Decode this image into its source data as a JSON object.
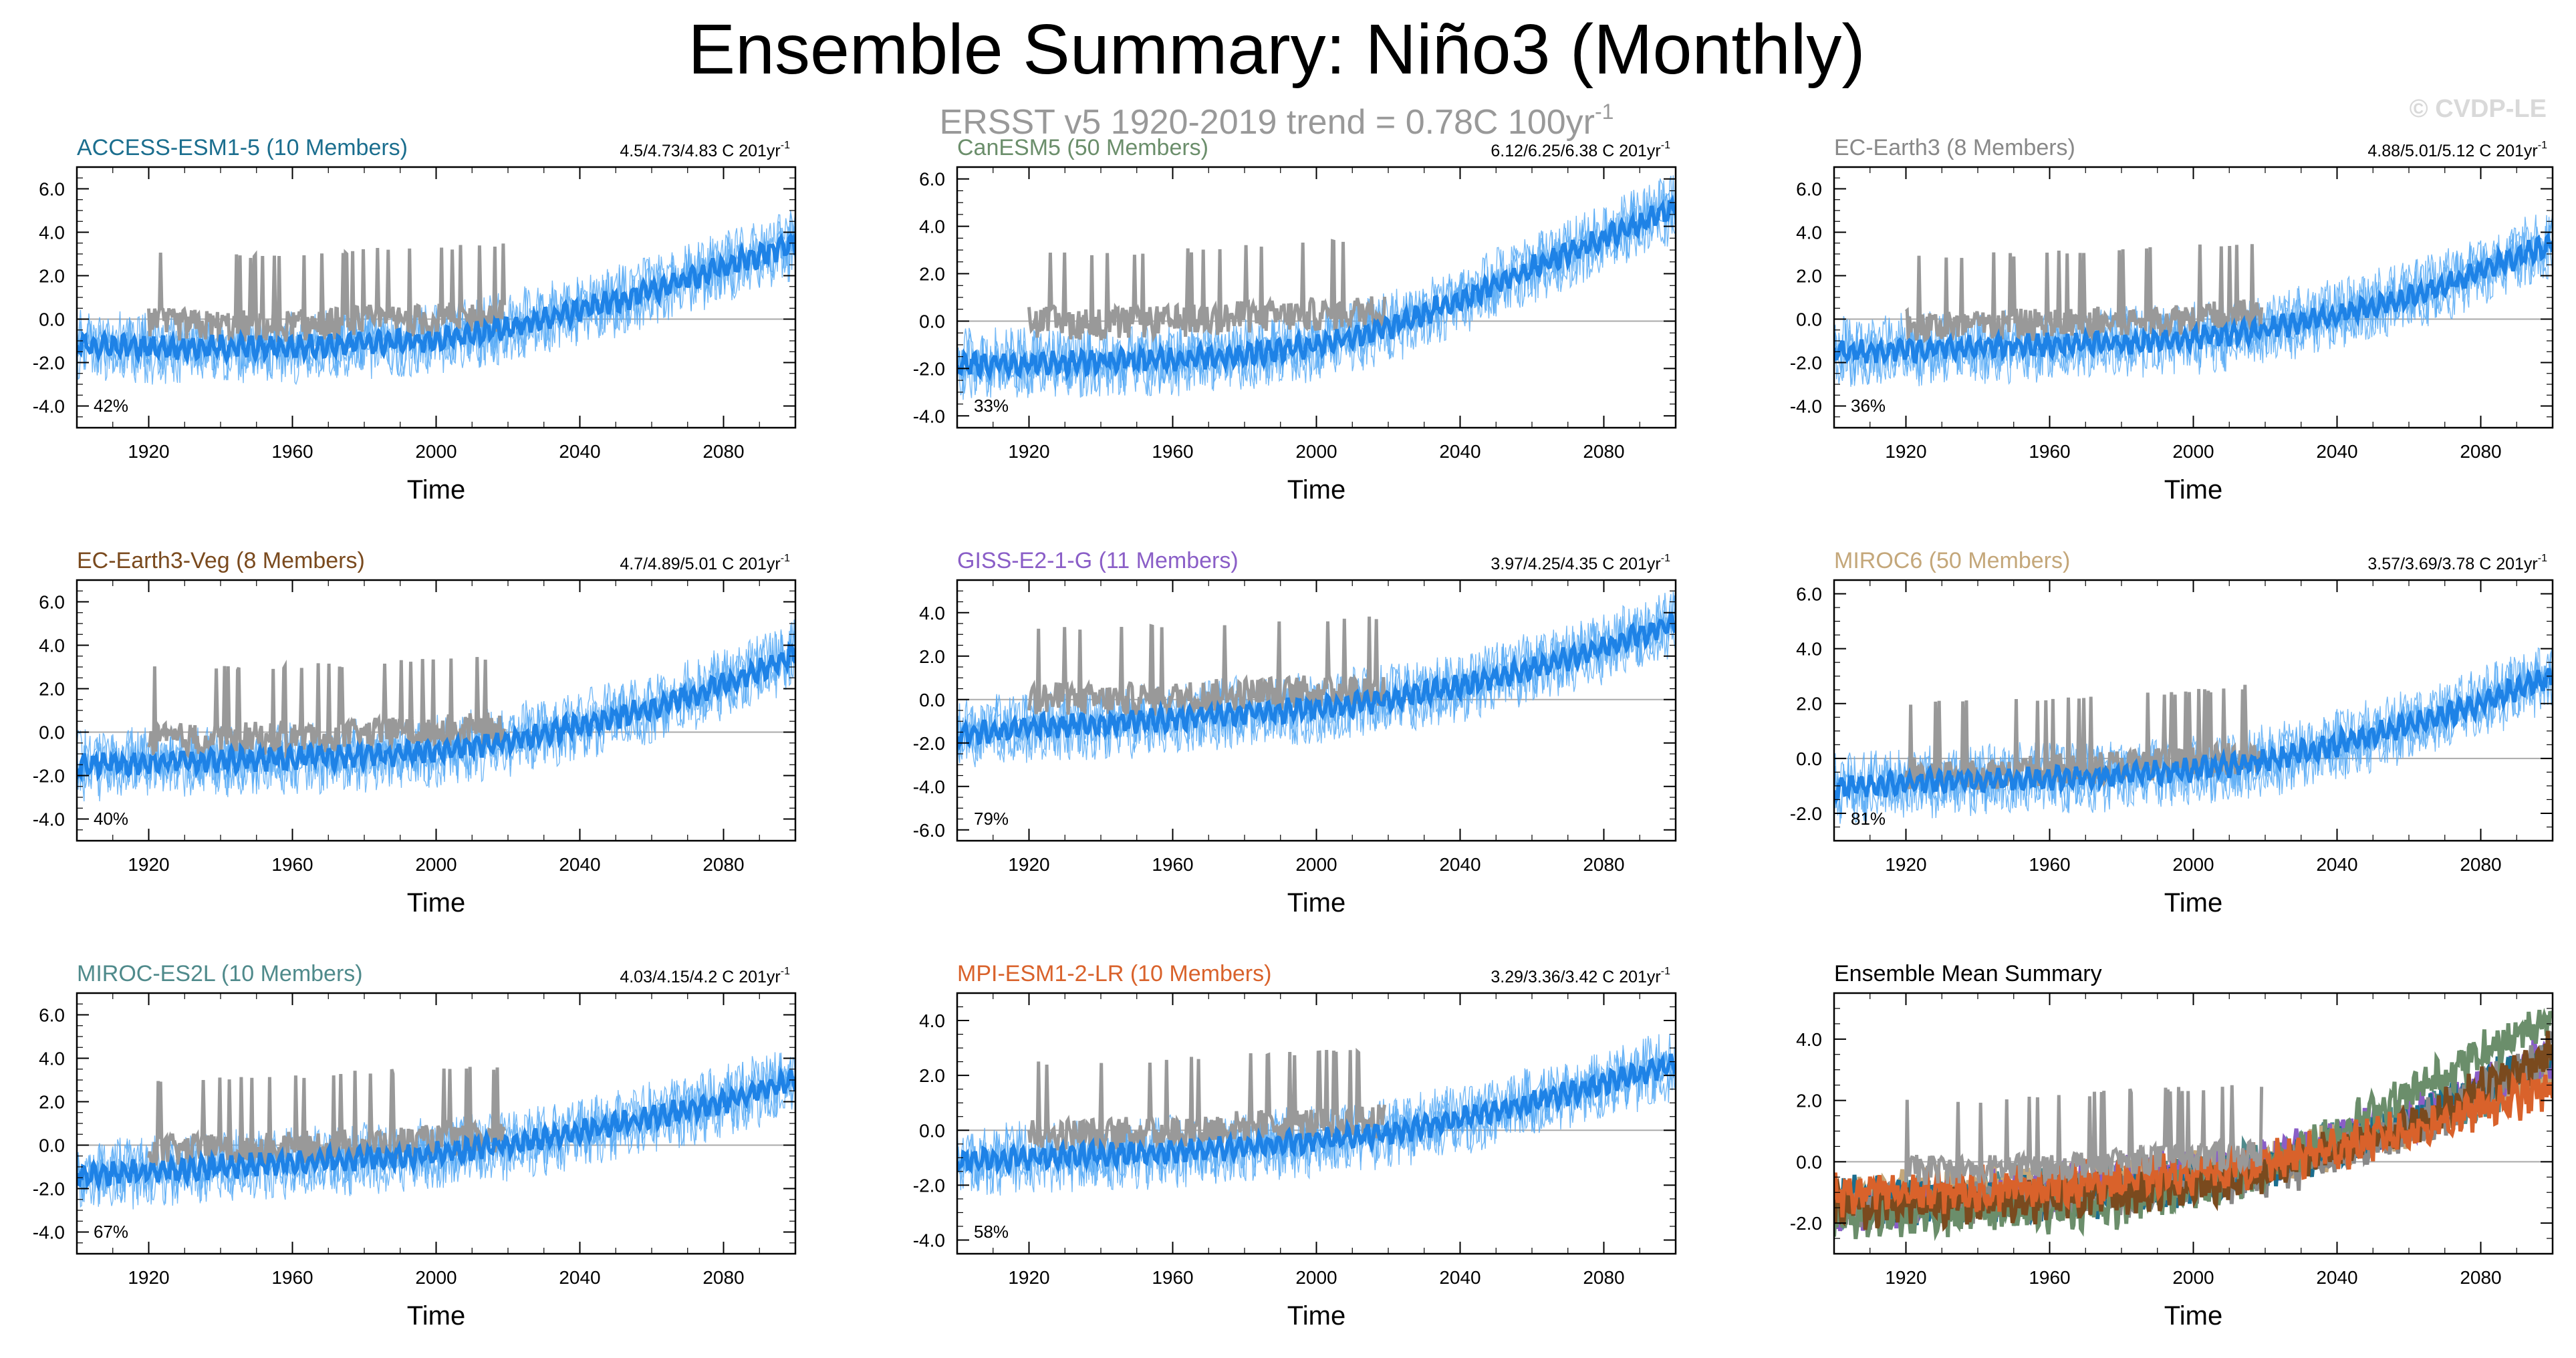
{
  "page": {
    "title": "Ensemble Summary: Niño3 (Monthly)",
    "subtitle_prefix": "ERSST v5 1920-2019 trend = 0.78C 100yr",
    "subtitle_exponent": "-1",
    "watermark": "© CVDP-LE"
  },
  "colors": {
    "observed": "#999999",
    "member_spread": "#54a9f5",
    "ensemble_mean": "#1e82e6",
    "zero_line": "#aaaaaa",
    "axis": "#000000"
  },
  "chart_data": [
    {
      "type": "line",
      "title": "ACCESS-ESM1-5 (10 Members)",
      "title_color": "#1b6e8e",
      "trend_text": "4.5/4.73/4.83 C 201yr",
      "trend_exponent": "-1",
      "percent_label": "42%",
      "xlabel": "Time",
      "xlim": [
        1900,
        2100
      ],
      "xticks": [
        1920,
        1960,
        2000,
        2040,
        2080
      ],
      "ylim": [
        -5,
        7
      ],
      "yticks": [
        -4.0,
        -2.0,
        0.0,
        2.0,
        4.0,
        6.0
      ],
      "grid": false,
      "series": [
        {
          "role": "ensemble-mean",
          "x": [
            1900,
            1920,
            1940,
            1960,
            1980,
            2000,
            2020,
            2040,
            2060,
            2080,
            2100
          ],
          "values": [
            -1.2,
            -1.3,
            -1.3,
            -1.3,
            -1.1,
            -1.0,
            -0.4,
            0.4,
            1.3,
            2.4,
            3.5
          ]
        },
        {
          "role": "observed",
          "x": [
            1920,
            1940,
            1960,
            1980,
            2000,
            2019
          ],
          "values": [
            -0.3,
            -0.4,
            -0.4,
            -0.2,
            -0.1,
            0.1
          ]
        }
      ]
    },
    {
      "type": "line",
      "title": "CanESM5 (50 Members)",
      "title_color": "#6b8e6b",
      "trend_text": "6.12/6.25/6.38 C 201yr",
      "trend_exponent": "-1",
      "percent_label": "33%",
      "xlabel": "Time",
      "xlim": [
        1900,
        2100
      ],
      "xticks": [
        1920,
        1960,
        2000,
        2040,
        2080
      ],
      "ylim": [
        -4.5,
        6.5
      ],
      "yticks": [
        -4.0,
        -2.0,
        0.0,
        2.0,
        4.0,
        6.0
      ],
      "grid": false,
      "series": [
        {
          "role": "ensemble-mean",
          "x": [
            1900,
            1920,
            1940,
            1960,
            1980,
            2000,
            2020,
            2040,
            2060,
            2080,
            2100
          ],
          "values": [
            -1.8,
            -1.8,
            -1.7,
            -1.6,
            -1.4,
            -1.0,
            -0.3,
            0.9,
            2.2,
            3.5,
            4.8
          ]
        },
        {
          "role": "observed",
          "x": [
            1920,
            1940,
            1960,
            1980,
            2000,
            2019
          ],
          "values": [
            -0.1,
            -0.2,
            -0.1,
            0.1,
            0.2,
            0.4
          ]
        }
      ]
    },
    {
      "type": "line",
      "title": "EC-Earth3 (8 Members)",
      "title_color": "#888888",
      "trend_text": "4.88/5.01/5.12 C 201yr",
      "trend_exponent": "-1",
      "percent_label": "36%",
      "xlabel": "Time",
      "xlim": [
        1900,
        2100
      ],
      "xticks": [
        1920,
        1960,
        2000,
        2040,
        2080
      ],
      "ylim": [
        -5,
        7
      ],
      "yticks": [
        -4.0,
        -2.0,
        0.0,
        2.0,
        4.0,
        6.0
      ],
      "grid": false,
      "series": [
        {
          "role": "ensemble-mean",
          "x": [
            1900,
            1920,
            1940,
            1960,
            1980,
            2000,
            2020,
            2040,
            2060,
            2080,
            2100
          ],
          "values": [
            -1.5,
            -1.4,
            -1.3,
            -1.2,
            -1.1,
            -0.9,
            -0.5,
            0.2,
            1.0,
            2.2,
            3.5
          ]
        },
        {
          "role": "observed",
          "x": [
            1920,
            1940,
            1960,
            1980,
            2000,
            2019
          ],
          "values": [
            -0.4,
            -0.4,
            -0.3,
            -0.2,
            0.0,
            0.1
          ]
        }
      ]
    },
    {
      "type": "line",
      "title": "EC-Earth3-Veg (8 Members)",
      "title_color": "#7a4a1e",
      "trend_text": "4.7/4.89/5.01 C 201yr",
      "trend_exponent": "-1",
      "percent_label": "40%",
      "xlabel": "Time",
      "xlim": [
        1900,
        2100
      ],
      "xticks": [
        1920,
        1960,
        2000,
        2040,
        2080
      ],
      "ylim": [
        -5,
        7
      ],
      "yticks": [
        -4.0,
        -2.0,
        0.0,
        2.0,
        4.0,
        6.0
      ],
      "grid": false,
      "series": [
        {
          "role": "ensemble-mean",
          "x": [
            1900,
            1920,
            1940,
            1960,
            1980,
            2000,
            2020,
            2040,
            2060,
            2080,
            2100
          ],
          "values": [
            -1.5,
            -1.4,
            -1.3,
            -1.2,
            -1.1,
            -0.9,
            -0.4,
            0.3,
            1.1,
            2.2,
            3.6
          ]
        },
        {
          "role": "observed",
          "x": [
            1920,
            1940,
            1960,
            1980,
            2000,
            2019
          ],
          "values": [
            -0.4,
            -0.4,
            -0.3,
            -0.2,
            0.0,
            0.1
          ]
        }
      ]
    },
    {
      "type": "line",
      "title": "GISS-E2-1-G (11 Members)",
      "title_color": "#8a5ec7",
      "trend_text": "3.97/4.25/4.35 C 201yr",
      "trend_exponent": "-1",
      "percent_label": "79%",
      "xlabel": "Time",
      "xlim": [
        1900,
        2100
      ],
      "xticks": [
        1920,
        1960,
        2000,
        2040,
        2080
      ],
      "ylim": [
        -6.5,
        5.5
      ],
      "yticks": [
        -6.0,
        -4.0,
        -2.0,
        0.0,
        2.0,
        4.0
      ],
      "grid": false,
      "series": [
        {
          "role": "ensemble-mean",
          "x": [
            1900,
            1920,
            1940,
            1960,
            1980,
            2000,
            2020,
            2040,
            2060,
            2080,
            2100
          ],
          "values": [
            -1.6,
            -1.3,
            -1.1,
            -0.9,
            -0.6,
            -0.4,
            0.0,
            0.6,
            1.4,
            2.4,
            3.5
          ]
        },
        {
          "role": "observed",
          "x": [
            1920,
            1940,
            1960,
            1980,
            2000,
            2019
          ],
          "values": [
            0.0,
            -0.1,
            0.0,
            0.2,
            0.3,
            0.4
          ]
        }
      ]
    },
    {
      "type": "line",
      "title": "MIROC6 (50 Members)",
      "title_color": "#c4a77a",
      "trend_text": "3.57/3.69/3.78 C 201yr",
      "trend_exponent": "-1",
      "percent_label": "81%",
      "xlabel": "Time",
      "xlim": [
        1900,
        2100
      ],
      "xticks": [
        1920,
        1960,
        2000,
        2040,
        2080
      ],
      "ylim": [
        -3,
        6.5
      ],
      "yticks": [
        -2.0,
        0.0,
        2.0,
        4.0,
        6.0
      ],
      "grid": false,
      "series": [
        {
          "role": "ensemble-mean",
          "x": [
            1900,
            1920,
            1940,
            1960,
            1980,
            2000,
            2020,
            2040,
            2060,
            2080,
            2100
          ],
          "values": [
            -1.1,
            -0.9,
            -0.8,
            -0.7,
            -0.6,
            -0.4,
            -0.1,
            0.5,
            1.2,
            2.0,
            3.0
          ]
        },
        {
          "role": "observed",
          "x": [
            1920,
            1940,
            1960,
            1980,
            2000,
            2019
          ],
          "values": [
            -0.6,
            -0.6,
            -0.5,
            -0.3,
            -0.2,
            0.0
          ]
        }
      ]
    },
    {
      "type": "line",
      "title": "MIROC-ES2L (10 Members)",
      "title_color": "#4f8a8b",
      "trend_text": "4.03/4.15/4.2 C 201yr",
      "trend_exponent": "-1",
      "percent_label": "67%",
      "xlabel": "Time",
      "xlim": [
        1900,
        2100
      ],
      "xticks": [
        1920,
        1960,
        2000,
        2040,
        2080
      ],
      "ylim": [
        -5,
        7
      ],
      "yticks": [
        -4.0,
        -2.0,
        0.0,
        2.0,
        4.0,
        6.0
      ],
      "grid": false,
      "series": [
        {
          "role": "ensemble-mean",
          "x": [
            1900,
            1920,
            1940,
            1960,
            1980,
            2000,
            2020,
            2040,
            2060,
            2080,
            2100
          ],
          "values": [
            -1.4,
            -1.2,
            -1.0,
            -0.8,
            -0.6,
            -0.4,
            0.0,
            0.6,
            1.3,
            2.0,
            3.0
          ]
        },
        {
          "role": "observed",
          "x": [
            1920,
            1940,
            1960,
            1980,
            2000,
            2019
          ],
          "values": [
            -0.3,
            -0.3,
            -0.2,
            0.0,
            0.1,
            0.2
          ]
        }
      ]
    },
    {
      "type": "line",
      "title": "MPI-ESM1-2-LR (10 Members)",
      "title_color": "#d9622b",
      "trend_text": "3.29/3.36/3.42 C 201yr",
      "trend_exponent": "-1",
      "percent_label": "58%",
      "xlabel": "Time",
      "xlim": [
        1900,
        2100
      ],
      "xticks": [
        1920,
        1960,
        2000,
        2040,
        2080
      ],
      "ylim": [
        -4.5,
        5
      ],
      "yticks": [
        -4.0,
        -2.0,
        0.0,
        2.0,
        4.0
      ],
      "grid": false,
      "series": [
        {
          "role": "ensemble-mean",
          "x": [
            1900,
            1920,
            1940,
            1960,
            1980,
            2000,
            2020,
            2040,
            2060,
            2080,
            2100
          ],
          "values": [
            -1.1,
            -1.0,
            -0.9,
            -0.8,
            -0.6,
            -0.4,
            -0.1,
            0.4,
            1.0,
            1.7,
            2.4
          ]
        },
        {
          "role": "observed",
          "x": [
            1920,
            1940,
            1960,
            1980,
            2000,
            2019
          ],
          "values": [
            -0.2,
            -0.2,
            -0.1,
            0.1,
            0.2,
            0.3
          ]
        }
      ]
    },
    {
      "type": "line",
      "title": "Ensemble Mean Summary",
      "title_color": "#000000",
      "xlabel": "Time",
      "xlim": [
        1900,
        2100
      ],
      "xticks": [
        1920,
        1960,
        2000,
        2040,
        2080
      ],
      "ylim": [
        -3,
        5.5
      ],
      "yticks": [
        -2.0,
        0.0,
        2.0,
        4.0
      ],
      "grid": false,
      "series": [
        {
          "role": "observed",
          "color": "#999999",
          "x": [
            1920,
            1940,
            1960,
            1980,
            2000,
            2019
          ],
          "values": [
            -0.3,
            -0.3,
            -0.2,
            0.0,
            0.1,
            0.2
          ]
        },
        {
          "role": "model-mean",
          "color": "#4f8a8b",
          "x": [
            1900,
            1940,
            1980,
            2020,
            2060,
            2100
          ],
          "values": [
            -1.4,
            -1.0,
            -0.6,
            0.0,
            1.3,
            3.0
          ]
        },
        {
          "role": "model-mean",
          "color": "#c4a77a",
          "x": [
            1900,
            1940,
            1980,
            2020,
            2060,
            2100
          ],
          "values": [
            -1.1,
            -0.8,
            -0.6,
            -0.1,
            1.2,
            3.0
          ]
        },
        {
          "role": "model-mean",
          "color": "#8a5ec7",
          "x": [
            1900,
            1940,
            1980,
            2020,
            2060,
            2100
          ],
          "values": [
            -1.6,
            -1.1,
            -0.6,
            0.0,
            1.4,
            3.5
          ]
        },
        {
          "role": "model-mean",
          "color": "#1b6e8e",
          "x": [
            1900,
            1940,
            1980,
            2020,
            2060,
            2100
          ],
          "values": [
            -1.2,
            -1.3,
            -1.1,
            -0.4,
            1.3,
            3.5
          ]
        },
        {
          "role": "model-mean",
          "color": "#888888",
          "x": [
            1900,
            1940,
            1980,
            2020,
            2060,
            2100
          ],
          "values": [
            -1.5,
            -1.3,
            -1.1,
            -0.5,
            1.0,
            3.5
          ]
        },
        {
          "role": "model-mean",
          "color": "#6b8e6b",
          "x": [
            1900,
            1940,
            1980,
            2020,
            2060,
            2100
          ],
          "values": [
            -1.8,
            -1.7,
            -1.4,
            -0.3,
            2.2,
            4.8
          ]
        },
        {
          "role": "model-mean",
          "color": "#7a4a1e",
          "x": [
            1900,
            1940,
            1980,
            2020,
            2060,
            2100
          ],
          "values": [
            -1.5,
            -1.3,
            -1.1,
            -0.4,
            1.1,
            3.6
          ]
        },
        {
          "role": "model-mean",
          "color": "#d9622b",
          "x": [
            1900,
            1940,
            1980,
            2020,
            2060,
            2100
          ],
          "values": [
            -1.1,
            -0.9,
            -0.6,
            -0.1,
            1.0,
            2.4
          ]
        }
      ]
    }
  ]
}
